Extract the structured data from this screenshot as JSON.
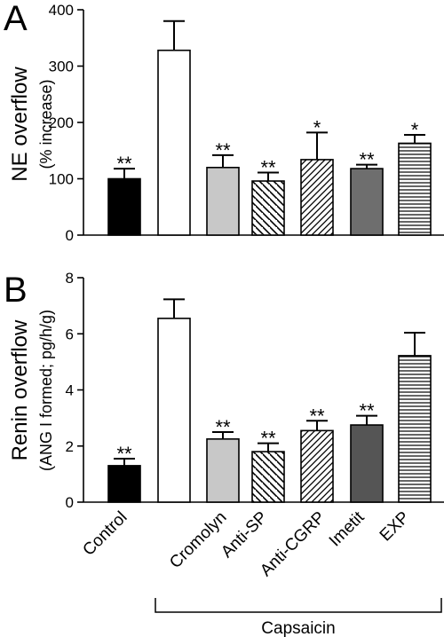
{
  "colors": {
    "black": "#000000",
    "white": "#ffffff",
    "light_gray": "#c8c8c8",
    "dark_gray": "#6e6e6e",
    "darker_gray": "#555555"
  },
  "categories": [
    "Control",
    "Cromolyn",
    "Anti-SP",
    "Anti-CGRP",
    "Imetit",
    "EXP"
  ],
  "group_label": "Capsaicin",
  "chart_data": [
    {
      "panel": "A",
      "type": "bar",
      "ylabel": "NE overflow",
      "ylabel_sub": "(% increase)",
      "ylim": [
        0,
        400
      ],
      "yticks": [
        0,
        100,
        200,
        300,
        400
      ],
      "bars": [
        {
          "label": "",
          "value": 100,
          "error": 18,
          "fill": "black",
          "sig": "**"
        },
        {
          "label": "",
          "value": 328,
          "error": 52,
          "fill": "white",
          "sig": ""
        },
        {
          "label": "Cromolyn",
          "value": 120,
          "error": 22,
          "fill": "light_gray",
          "sig": "**"
        },
        {
          "label": "Anti-SP",
          "value": 96,
          "error": 15,
          "fill": "diag_right",
          "sig": "**"
        },
        {
          "label": "Anti-CGRP",
          "value": 134,
          "error": 48,
          "fill": "diag_left",
          "sig": "*"
        },
        {
          "label": "Imetit",
          "value": 118,
          "error": 7,
          "fill": "dark_gray",
          "sig": "**"
        },
        {
          "label": "EXP",
          "value": 163,
          "error": 15,
          "fill": "horizontal",
          "sig": "*"
        }
      ]
    },
    {
      "panel": "B",
      "type": "bar",
      "ylabel": "Renin overflow",
      "ylabel_sub": "(ANG I formed; pg/h/g)",
      "ylim": [
        0,
        8
      ],
      "yticks": [
        0,
        2,
        4,
        6,
        8
      ],
      "bars": [
        {
          "label": "Control",
          "value": 1.3,
          "error": 0.25,
          "fill": "black",
          "sig": "**"
        },
        {
          "label": "",
          "value": 6.55,
          "error": 0.68,
          "fill": "white",
          "sig": ""
        },
        {
          "label": "Cromolyn",
          "value": 2.25,
          "error": 0.25,
          "fill": "light_gray",
          "sig": "**"
        },
        {
          "label": "Anti-SP",
          "value": 1.8,
          "error": 0.3,
          "fill": "diag_right",
          "sig": "**"
        },
        {
          "label": "Anti-CGRP",
          "value": 2.55,
          "error": 0.35,
          "fill": "diag_left",
          "sig": "**"
        },
        {
          "label": "Imetit",
          "value": 2.75,
          "error": 0.33,
          "fill": "darker_gray",
          "sig": "**"
        },
        {
          "label": "EXP",
          "value": 5.22,
          "error": 0.82,
          "fill": "horizontal",
          "sig": ""
        }
      ]
    }
  ]
}
